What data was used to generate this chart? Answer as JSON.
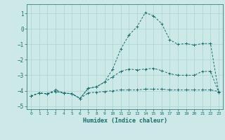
{
  "xlabel": "Humidex (Indice chaleur)",
  "bg_color": "#cce9e8",
  "grid_color": "#aad4d2",
  "line_color": "#1a6b6b",
  "xlim": [
    -0.5,
    23.5
  ],
  "ylim": [
    -5.2,
    1.6
  ],
  "xticks": [
    0,
    1,
    2,
    3,
    4,
    5,
    6,
    7,
    8,
    9,
    10,
    11,
    12,
    13,
    14,
    15,
    16,
    17,
    18,
    19,
    20,
    21,
    22,
    23
  ],
  "yticks": [
    -5,
    -4,
    -3,
    -2,
    -1,
    0,
    1
  ],
  "series": [
    {
      "x": [
        0,
        1,
        2,
        3,
        4,
        5,
        6,
        7,
        8,
        9,
        10,
        11,
        12,
        13,
        14,
        15,
        16,
        17,
        18,
        19,
        20,
        21,
        22,
        23
      ],
      "y": [
        -4.35,
        -4.15,
        -4.2,
        -4.05,
        -4.15,
        -4.2,
        -4.5,
        -4.15,
        -4.1,
        -4.05,
        -4.0,
        -3.95,
        -3.95,
        -3.95,
        -3.9,
        -3.9,
        -3.9,
        -3.95,
        -3.95,
        -3.95,
        -3.95,
        -3.95,
        -3.95,
        -4.05
      ]
    },
    {
      "x": [
        0,
        1,
        2,
        3,
        4,
        5,
        6,
        7,
        8,
        9,
        10,
        11,
        12,
        13,
        14,
        15,
        16,
        17,
        18,
        19,
        20,
        21,
        22,
        23
      ],
      "y": [
        -4.35,
        -4.15,
        -4.2,
        -4.05,
        -4.15,
        -4.2,
        -4.5,
        -3.85,
        -3.75,
        -3.45,
        -3.1,
        -2.75,
        -2.6,
        -2.65,
        -2.6,
        -2.55,
        -2.7,
        -2.9,
        -3.0,
        -3.0,
        -3.0,
        -2.75,
        -2.75,
        -4.1
      ]
    },
    {
      "x": [
        0,
        1,
        2,
        3,
        4,
        5,
        6,
        7,
        8,
        9,
        10,
        11,
        12,
        13,
        14,
        15,
        16,
        17,
        18,
        19,
        20,
        21,
        22,
        23
      ],
      "y": [
        -4.35,
        -4.15,
        -4.2,
        -3.95,
        -4.15,
        -4.2,
        -4.5,
        -3.85,
        -3.75,
        -3.45,
        -2.6,
        -1.3,
        -0.4,
        0.15,
        1.05,
        0.85,
        0.35,
        -0.7,
        -1.0,
        -0.95,
        -1.05,
        -0.95,
        -0.95,
        -4.1
      ]
    }
  ]
}
